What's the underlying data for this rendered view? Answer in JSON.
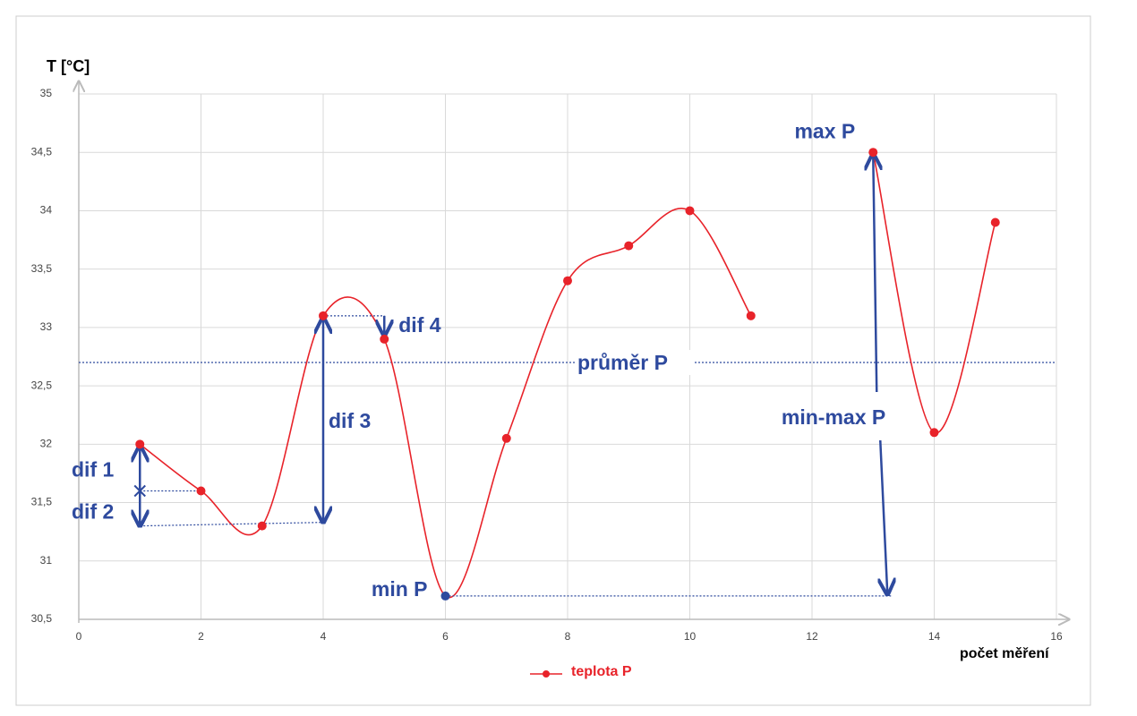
{
  "chart_data": {
    "type": "line",
    "y_label": "T [°C]",
    "x_label": "počet měření",
    "x": [
      1,
      2,
      3,
      4,
      5,
      6,
      7,
      8,
      9,
      10,
      11,
      12,
      13,
      14,
      15
    ],
    "series": [
      {
        "name": "teplota P",
        "color": "#e8232a",
        "values": [
          32,
          31.6,
          31.3,
          33.1,
          32.9,
          30.7,
          32.05,
          33.4,
          33.7,
          34,
          33.1,
          null,
          34.5,
          32.1,
          33.9
        ]
      }
    ],
    "xlim": [
      0,
      16
    ],
    "xticks": [
      0,
      2,
      4,
      6,
      8,
      10,
      12,
      14,
      16
    ],
    "ylim": [
      30.5,
      35
    ],
    "yticks": [
      {
        "value": 30.5,
        "label": "30,5"
      },
      31,
      {
        "value": 31.5,
        "label": "31,5"
      },
      32,
      {
        "value": 32.5,
        "label": "32,5"
      },
      33,
      {
        "value": 33.5,
        "label": "33,5"
      },
      34,
      {
        "value": 34.5,
        "label": "34,5"
      },
      35
    ],
    "grid": true,
    "smooth": true,
    "mean": {
      "label": "průměr P",
      "value": 32.7
    },
    "annotations": {
      "dif": [
        "dif 1",
        "dif 2",
        "dif 3",
        "dif 4"
      ],
      "min": "min P",
      "max": "max P",
      "range": "min-max P"
    },
    "annotation_color": "#2e4a9e"
  }
}
